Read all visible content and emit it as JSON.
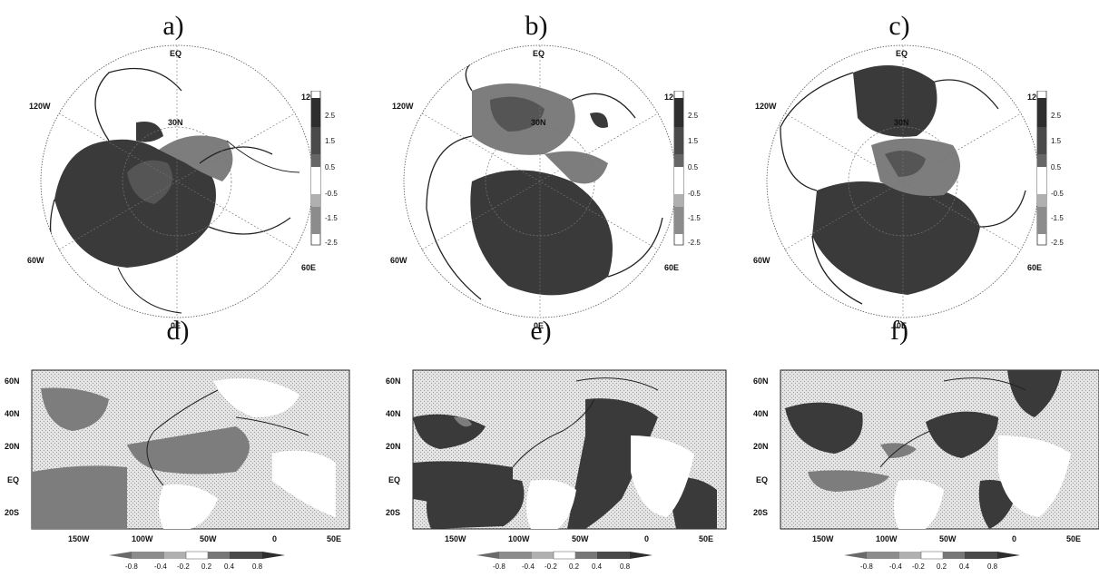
{
  "polar_panels": [
    {
      "label": "a)",
      "ticks": {
        "top": "EQ",
        "inner": "30N",
        "ul": "120W",
        "ur": "120E",
        "ll": "60W",
        "lr": "60E",
        "bottom": "0E"
      }
    },
    {
      "label": "b)",
      "ticks": {
        "top": "EQ",
        "inner": "30N",
        "ul": "120W",
        "ur": "120E",
        "ll": "60W",
        "lr": "60E",
        "bottom": "0E"
      }
    },
    {
      "label": "c)",
      "ticks": {
        "top": "EQ",
        "inner": "30N",
        "ul": "120W",
        "ur": "120E",
        "ll": "60W",
        "lr": "60E",
        "bottom": "0E"
      }
    }
  ],
  "polar_colorbar": [
    "2.5",
    "1.5",
    "0.5",
    "-0.5",
    "-1.5",
    "-2.5"
  ],
  "map_panels": [
    {
      "label": "d)"
    },
    {
      "label": "e)"
    },
    {
      "label": "f)"
    }
  ],
  "map_axes": {
    "lat_ticks": [
      "60N",
      "40N",
      "20N",
      "EQ",
      "20S"
    ],
    "lon_ticks": [
      "150W",
      "100W",
      "50W",
      "0",
      "50E"
    ]
  },
  "map_colorbar": [
    "-0.8",
    "-0.4",
    "-0.2",
    "0.2",
    "0.4",
    "0.8"
  ],
  "colors": {
    "dark": "#3a3a3a",
    "mid": "#7d7d7d",
    "light": "#b4b4b4",
    "land": "#ffffff",
    "stipple": "#d6d6d6"
  }
}
